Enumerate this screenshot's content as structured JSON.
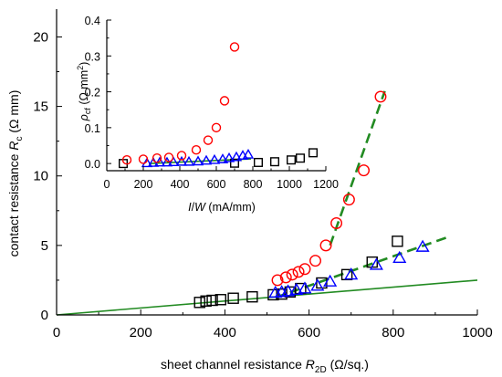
{
  "chart_data": [
    {
      "type": "scatter",
      "xlim": [
        0,
        1000
      ],
      "ylim": [
        0,
        22
      ],
      "x_ticks": [
        "0",
        "200",
        "400",
        "600",
        "800",
        "1000"
      ],
      "y_ticks": [
        "0",
        "5",
        "10",
        "15",
        "20"
      ],
      "xlabel": {
        "main": "sheet channel resistance ",
        "sym": "R",
        "sub": "2D",
        "unit": " (Ω/sq.)"
      },
      "ylabel": {
        "main": "contact resistance ",
        "sym": "R",
        "sub": "c",
        "unit": " (Ω mm)"
      },
      "colors": {
        "squares": "#000000",
        "triangles": "#0000ff",
        "circles": "#ff0000",
        "fit_dashed": "#228b22",
        "fit_solid": "#228b22"
      },
      "series": [
        {
          "marker": "square",
          "x": [
            340,
            355,
            370,
            390,
            420,
            465,
            515,
            535,
            555,
            580,
            630,
            690,
            750,
            810
          ],
          "y": [
            0.9,
            1.0,
            1.05,
            1.1,
            1.2,
            1.3,
            1.45,
            1.5,
            1.65,
            1.9,
            2.3,
            2.9,
            3.8,
            5.3
          ]
        },
        {
          "marker": "triangle",
          "x": [
            520,
            535,
            550,
            570,
            590,
            620,
            650,
            700,
            760,
            815,
            870
          ],
          "y": [
            1.6,
            1.65,
            1.7,
            1.8,
            1.9,
            2.1,
            2.4,
            2.9,
            3.6,
            4.1,
            4.9
          ]
        },
        {
          "marker": "circle",
          "x": [
            525,
            545,
            560,
            575,
            590,
            615,
            640,
            665,
            695,
            730,
            770
          ],
          "y": [
            2.5,
            2.7,
            2.9,
            3.1,
            3.3,
            3.9,
            5.0,
            6.6,
            8.3,
            10.4,
            15.7
          ]
        }
      ],
      "fit_lines": [
        {
          "style": "solid",
          "x": [
            0,
            1000
          ],
          "y": [
            0,
            2.5
          ]
        },
        {
          "style": "dashed",
          "x": [
            520,
            930
          ],
          "y": [
            1.25,
            5.6
          ]
        },
        {
          "style": "dashed",
          "x": [
            650,
            780
          ],
          "y": [
            5.0,
            16.1
          ]
        }
      ]
    },
    {
      "type": "scatter",
      "xlim": [
        0,
        1200
      ],
      "ylim": [
        -0.02,
        0.4
      ],
      "x_ticks": [
        "0",
        "200",
        "400",
        "600",
        "800",
        "1000",
        "1200"
      ],
      "y_ticks": [
        "0.0",
        "0.1",
        "0.2",
        "0.3",
        "0.4"
      ],
      "xlabel": {
        "sym1": "I",
        "mid": "/",
        "sym2": "W",
        "unit": " (mA/mm)"
      },
      "ylabel": {
        "sym": "ρ",
        "sub": "cf",
        "unit": " (Ω mm",
        "sup": "2",
        "end": ")"
      },
      "series": [
        {
          "marker": "square",
          "x": [
            90,
            700,
            830,
            920,
            1010,
            1060,
            1130
          ],
          "y": [
            0.0,
            0.001,
            0.003,
            0.005,
            0.01,
            0.015,
            0.03
          ]
        },
        {
          "marker": "triangle",
          "x": [
            220,
            255,
            290,
            330,
            365,
            410,
            450,
            500,
            545,
            590,
            635,
            670,
            710,
            745,
            775
          ],
          "y": [
            0.001,
            0.002,
            0.003,
            0.003,
            0.004,
            0.005,
            0.005,
            0.006,
            0.008,
            0.01,
            0.012,
            0.015,
            0.018,
            0.022,
            0.025
          ]
        },
        {
          "marker": "circle",
          "x": [
            110,
            200,
            275,
            340,
            410,
            490,
            555,
            600,
            645,
            700
          ],
          "y": [
            0.01,
            0.012,
            0.015,
            0.017,
            0.022,
            0.038,
            0.065,
            0.1,
            0.175,
            0.325
          ]
        }
      ],
      "fit_lines": [
        {
          "style": "solid",
          "x": [
            230,
            790
          ],
          "y": [
            0.0,
            0.013
          ]
        }
      ]
    }
  ]
}
